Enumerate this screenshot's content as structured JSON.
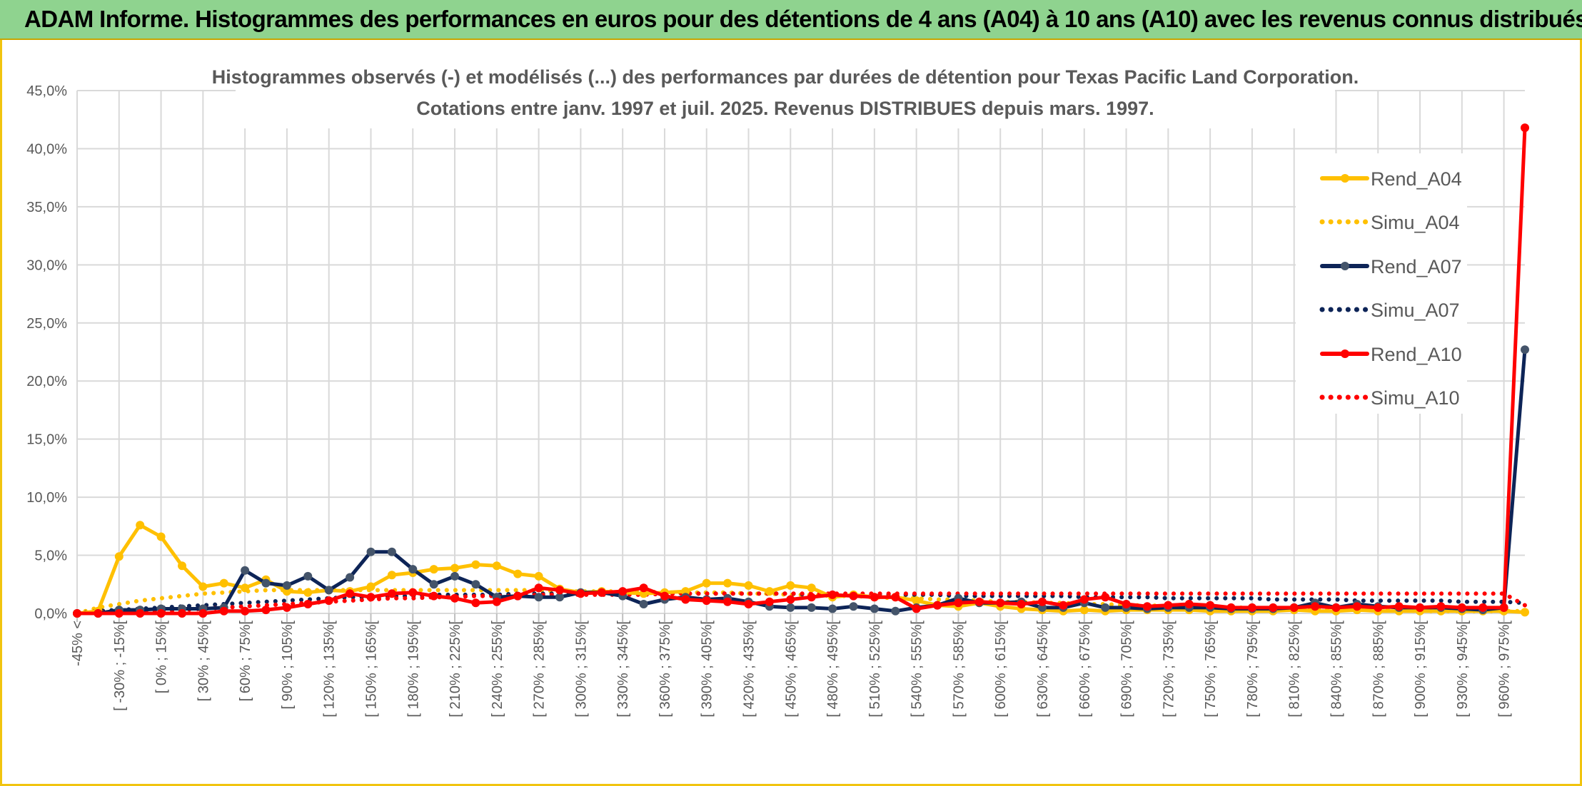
{
  "header": {
    "title": "ADAM Informe. Histogrammes des performances en euros pour des détentions de 4 ans (A04) à 10 ans (A10) avec les revenus connus distribués"
  },
  "colors": {
    "A04": "#ffc000",
    "A07": "#0d2457",
    "A07_marker": "#44546a",
    "A10": "#ff0000",
    "header_bg": "#8fd38f",
    "grid": "#d9d9d9",
    "text": "#595959"
  },
  "chart_data": {
    "type": "line",
    "title": "Histogrammes observés (-) et modélisés (...) des performances par durées de détention pour Texas Pacific Land Corporation.",
    "subtitle": "Cotations entre janv. 1997 et juil. 2025. Revenus DISTRIBUES depuis mars. 1997.",
    "ylim": [
      0,
      45
    ],
    "yticks": [
      "0,0%",
      "5,0%",
      "10,0%",
      "15,0%",
      "20,0%",
      "25,0%",
      "30,0%",
      "35,0%",
      "40,0%",
      "45,0%"
    ],
    "grid": true,
    "legend_position": "top-right",
    "x_labels": [
      "-45% <",
      "[ -30% ; -15%[",
      "[ 0% ; 15%[",
      "[ 30% ; 45%[",
      "[ 60% ; 75%[",
      "[ 90% ; 105%[",
      "[ 120% ; 135%[",
      "[ 150% ; 165%[",
      "[ 180% ; 195%[",
      "[ 210% ; 225%[",
      "[ 240% ; 255%[",
      "[ 270% ; 285%[",
      "[ 300% ; 315%[",
      "[ 330% ; 345%[",
      "[ 360% ; 375%[",
      "[ 390% ; 405%[",
      "[ 420% ; 435%[",
      "[ 450% ; 465%[",
      "[ 480% ; 495%[",
      "[ 510% ; 525%[",
      "[ 540% ; 555%[",
      "[ 570% ; 585%[",
      "[ 600% ; 615%[",
      "[ 630% ; 645%[",
      "[ 660% ; 675%[",
      "[ 690% ; 705%[",
      "[ 720% ; 735%[",
      "[ 750% ; 765%[",
      "[ 780% ; 795%[",
      "[ 810% ; 825%[",
      "[ 840% ; 855%[",
      "[ 870% ; 885%[",
      "[ 900% ; 915%[",
      "[ 930% ; 945%[",
      "[ 960% ; 975%["
    ],
    "n_points": 70,
    "series": [
      {
        "name": "Rend_A04",
        "style": "solid",
        "color": "#ffc000",
        "values": [
          0,
          0.2,
          4.9,
          7.6,
          6.6,
          4.1,
          2.3,
          2.6,
          2.2,
          2.9,
          1.9,
          1.8,
          2.0,
          1.9,
          2.3,
          3.3,
          3.5,
          3.8,
          3.9,
          4.2,
          4.1,
          3.4,
          3.2,
          2.1,
          1.8,
          1.9,
          1.8,
          1.7,
          1.8,
          1.9,
          2.6,
          2.6,
          2.4,
          1.9,
          2.4,
          2.2,
          1.4,
          1.6,
          1.4,
          1.4,
          1.1,
          0.7,
          0.6,
          0.9,
          0.6,
          0.4,
          0.3,
          0.2,
          0.3,
          0.2,
          0.3,
          0.3,
          0.3,
          0.3,
          0.2,
          0.2,
          0.2,
          0.2,
          0.3,
          0.2,
          0.2,
          0.3,
          0.2,
          0.2,
          0.2,
          0.2,
          0.2,
          0.2,
          0.2,
          0.1
        ]
      },
      {
        "name": "Simu_A04",
        "style": "dotted",
        "color": "#ffc000",
        "values": [
          0,
          0.5,
          0.8,
          1.1,
          1.3,
          1.5,
          1.7,
          1.8,
          1.9,
          2.0,
          2.0,
          2.0,
          2.0,
          2.0,
          2.0,
          2.0,
          2.0,
          2.0,
          2.0,
          2.0,
          2.0,
          2.0,
          2.0,
          1.9,
          1.9,
          1.9,
          1.9,
          1.9,
          1.8,
          1.8,
          1.8,
          1.8,
          1.7,
          1.7,
          1.6,
          1.6,
          1.5,
          1.5,
          1.4,
          1.3,
          1.3,
          1.2,
          1.2,
          1.1,
          1.0,
          1.0,
          0.9,
          0.9,
          0.8,
          0.8,
          0.7,
          0.7,
          0.6,
          0.6,
          0.5,
          0.5,
          0.5,
          0.4,
          0.4,
          0.4,
          0.3,
          0.3,
          0.3,
          0.3,
          0.2,
          0.2,
          0.2,
          0.2,
          0.2,
          0.2
        ]
      },
      {
        "name": "Rend_A07",
        "style": "solid",
        "color": "#0d2457",
        "values": [
          0,
          0,
          0.3,
          0.3,
          0.4,
          0.4,
          0.4,
          0.5,
          3.7,
          2.6,
          2.4,
          3.2,
          2.0,
          3.1,
          5.3,
          5.3,
          3.8,
          2.5,
          3.2,
          2.5,
          1.4,
          1.5,
          1.4,
          1.4,
          1.8,
          1.8,
          1.5,
          0.8,
          1.2,
          1.4,
          1.2,
          1.3,
          1.0,
          0.6,
          0.5,
          0.5,
          0.4,
          0.6,
          0.4,
          0.2,
          0.5,
          0.7,
          1.3,
          0.9,
          0.9,
          1.0,
          0.5,
          0.5,
          0.9,
          0.5,
          0.5,
          0.4,
          0.5,
          0.5,
          0.5,
          0.4,
          0.4,
          0.4,
          0.5,
          0.9,
          0.5,
          0.8,
          0.6,
          0.5,
          0.5,
          0.5,
          0.4,
          0.3,
          0.5,
          22.7
        ]
      },
      {
        "name": "Simu_A07",
        "style": "dotted",
        "color": "#0d2457",
        "values": [
          0,
          0.2,
          0.3,
          0.4,
          0.5,
          0.6,
          0.7,
          0.8,
          0.9,
          1.0,
          1.1,
          1.2,
          1.3,
          1.4,
          1.4,
          1.5,
          1.5,
          1.6,
          1.6,
          1.6,
          1.6,
          1.7,
          1.7,
          1.7,
          1.7,
          1.7,
          1.7,
          1.7,
          1.7,
          1.7,
          1.7,
          1.7,
          1.7,
          1.7,
          1.7,
          1.6,
          1.6,
          1.6,
          1.6,
          1.6,
          1.6,
          1.6,
          1.5,
          1.5,
          1.5,
          1.5,
          1.5,
          1.5,
          1.4,
          1.4,
          1.4,
          1.4,
          1.3,
          1.3,
          1.3,
          1.3,
          1.3,
          1.2,
          1.2,
          1.2,
          1.2,
          1.1,
          1.1,
          1.1,
          1.1,
          1.1,
          1.0,
          1.0,
          1.0,
          0.9
        ]
      },
      {
        "name": "Rend_A10",
        "style": "solid",
        "color": "#ff0000",
        "values": [
          0,
          0,
          0,
          0,
          0,
          0,
          0,
          0.2,
          0.2,
          0.3,
          0.5,
          0.8,
          1.1,
          1.7,
          1.4,
          1.7,
          1.8,
          1.5,
          1.3,
          0.9,
          1.0,
          1.5,
          2.2,
          2.0,
          1.7,
          1.8,
          1.9,
          2.2,
          1.5,
          1.2,
          1.1,
          1.0,
          0.8,
          1.0,
          1.2,
          1.4,
          1.6,
          1.5,
          1.4,
          1.4,
          0.4,
          0.7,
          0.9,
          1.0,
          0.9,
          0.8,
          1.0,
          0.7,
          1.2,
          1.4,
          0.8,
          0.6,
          0.7,
          0.8,
          0.7,
          0.5,
          0.5,
          0.5,
          0.5,
          0.6,
          0.5,
          0.6,
          0.5,
          0.6,
          0.5,
          0.6,
          0.5,
          0.5,
          0.5,
          41.8
        ]
      },
      {
        "name": "Simu_A10",
        "style": "dotted",
        "color": "#ff0000",
        "values": [
          0,
          0.1,
          0.1,
          0.2,
          0.2,
          0.3,
          0.4,
          0.5,
          0.6,
          0.7,
          0.8,
          0.9,
          1.0,
          1.1,
          1.2,
          1.3,
          1.3,
          1.4,
          1.4,
          1.5,
          1.5,
          1.5,
          1.6,
          1.6,
          1.6,
          1.6,
          1.6,
          1.6,
          1.7,
          1.7,
          1.7,
          1.7,
          1.7,
          1.7,
          1.7,
          1.7,
          1.7,
          1.7,
          1.7,
          1.7,
          1.7,
          1.7,
          1.7,
          1.7,
          1.7,
          1.7,
          1.7,
          1.7,
          1.7,
          1.7,
          1.7,
          1.7,
          1.7,
          1.7,
          1.7,
          1.7,
          1.7,
          1.7,
          1.7,
          1.7,
          1.7,
          1.7,
          1.7,
          1.7,
          1.7,
          1.7,
          1.7,
          1.7,
          1.7,
          0.7
        ]
      }
    ]
  }
}
